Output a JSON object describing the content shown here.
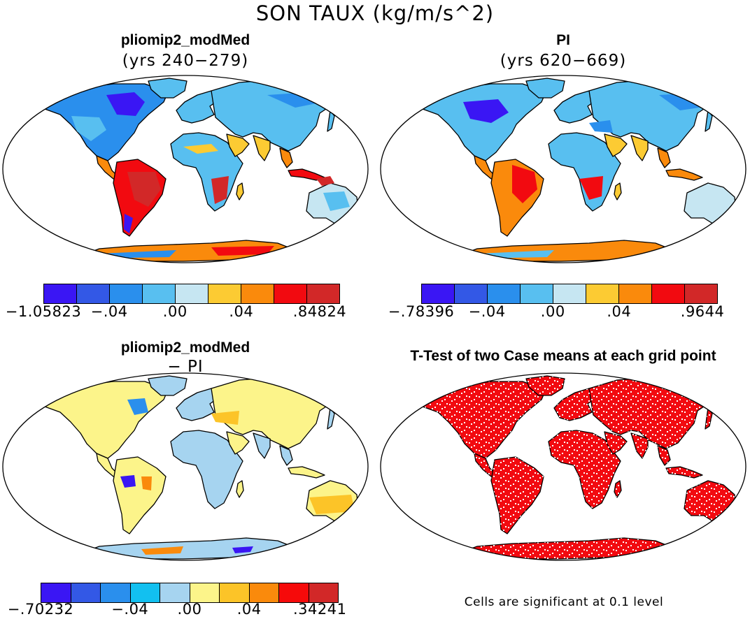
{
  "figure": {
    "title": "SON TAUX (kg/m/s^2)"
  },
  "panels": [
    {
      "id": "p1",
      "title": "pliomip2_modMed",
      "subtitle": "(yrs 240−279)",
      "colorbar": {
        "colors": [
          "#3a16f4",
          "#3358e6",
          "#2a8fed",
          "#58bff0",
          "#c6e6f2",
          "#fccb33",
          "#fa8a0c",
          "#f20a10",
          "#d22828"
        ],
        "labels": [
          "−1.05823",
          "−.04",
          ".00",
          ".04",
          ".84824"
        ]
      }
    },
    {
      "id": "p2",
      "title": "PI",
      "subtitle": "(yrs 620−669)",
      "colorbar": {
        "colors": [
          "#3a16f4",
          "#3358e6",
          "#2a8fed",
          "#58bff0",
          "#c6e6f2",
          "#fccb33",
          "#fa8a0c",
          "#f20a10",
          "#d22828"
        ],
        "labels": [
          "−.78396",
          "−.04",
          ".00",
          ".04",
          ".9644"
        ]
      }
    },
    {
      "id": "p3",
      "title": "pliomip2_modMed",
      "subtitle": "− PI",
      "colorbar": {
        "colors": [
          "#3a16f4",
          "#3358e6",
          "#2a8fed",
          "#12c0f0",
          "#a6d4f0",
          "#fcf48a",
          "#fcc428",
          "#fa8a0c",
          "#f60a0a",
          "#d22828"
        ],
        "labels": [
          "−.70232",
          "−.04",
          ".00",
          ".04",
          ".34241"
        ]
      }
    },
    {
      "id": "p4",
      "title": "T-Test of two Case means at each grid point",
      "note": "Cells are significant at 0.1 level"
    }
  ]
}
